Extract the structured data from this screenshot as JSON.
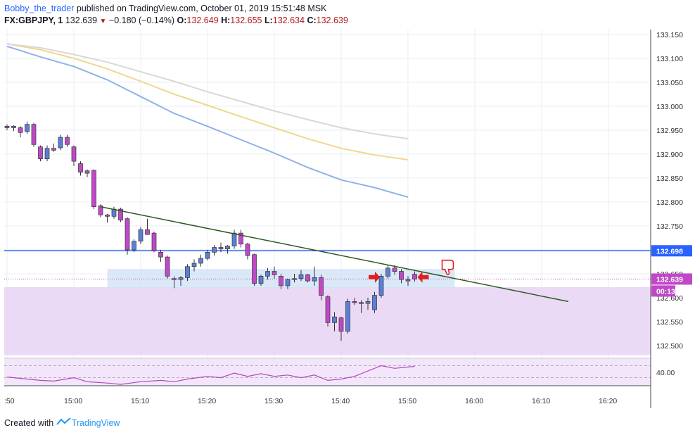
{
  "header": {
    "author": "Bobby_the_trader",
    "published": "published on TradingView.com, October 01, 2019 15:51:48 MSK",
    "symbol": "FX:GBPJPY, 1",
    "last": "132.639",
    "change": "−0.180 (−0.14%)",
    "o_label": "O:",
    "o": "132.649",
    "h_label": "H:",
    "h": "132.655",
    "l_label": "L:",
    "l": "132.634",
    "c_label": "C:",
    "c": "132.639"
  },
  "footer": {
    "created": "Created with",
    "brand": "TradingView"
  },
  "colors": {
    "up_candle": "#5b7fd6",
    "down_candle": "#c048c8",
    "ma_fast": "#8fb3e6",
    "ma_mid": "#f0d78c",
    "ma_slow": "#d8d8d8",
    "trendline": "#2e5a1f",
    "level_line": "#2962ff",
    "zone_fill": "#e8d4f5",
    "rsi": "#b04ab8",
    "marker_arrow": "#e02020"
  },
  "chart_data": {
    "type": "candlestick",
    "symbol": "FX:GBPJPY",
    "timeframe": "1",
    "x_ticks": [
      ":50",
      "15:00",
      "15:10",
      "15:20",
      "15:30",
      "15:40",
      "15:50",
      "16:00",
      "16:10",
      "16:20"
    ],
    "y_ticks": [
      "133.150",
      "133.100",
      "133.050",
      "133.000",
      "132.950",
      "132.900",
      "132.850",
      "132.800",
      "132.750",
      "132.700",
      "132.650",
      "132.600",
      "132.550",
      "132.500"
    ],
    "ylim": [
      132.475,
      133.16
    ],
    "price_tags": {
      "level": "132.698",
      "current": "132.639",
      "countdown": "00:13"
    },
    "horizontal_level": 132.698,
    "candles": [
      {
        "t": "14:50",
        "o": 132.958,
        "h": 132.962,
        "l": 132.95,
        "c": 132.955
      },
      {
        "t": "14:51",
        "o": 132.955,
        "h": 132.96,
        "l": 132.948,
        "c": 132.958
      },
      {
        "t": "14:52",
        "o": 132.955,
        "h": 132.958,
        "l": 132.935,
        "c": 132.945
      },
      {
        "t": "14:53",
        "o": 132.947,
        "h": 132.968,
        "l": 132.942,
        "c": 132.962
      },
      {
        "t": "14:54",
        "o": 132.962,
        "h": 132.965,
        "l": 132.915,
        "c": 132.92
      },
      {
        "t": "14:55",
        "o": 132.915,
        "h": 132.918,
        "l": 132.885,
        "c": 132.89
      },
      {
        "t": "14:56",
        "o": 132.89,
        "h": 132.918,
        "l": 132.885,
        "c": 132.912
      },
      {
        "t": "14:57",
        "o": 132.912,
        "h": 132.922,
        "l": 132.905,
        "c": 132.908
      },
      {
        "t": "14:58",
        "o": 132.913,
        "h": 132.94,
        "l": 132.908,
        "c": 132.935
      },
      {
        "t": "14:59",
        "o": 132.935,
        "h": 132.94,
        "l": 132.915,
        "c": 132.92
      },
      {
        "t": "15:00",
        "o": 132.915,
        "h": 132.918,
        "l": 132.875,
        "c": 132.885
      },
      {
        "t": "15:01",
        "o": 132.88,
        "h": 132.885,
        "l": 132.855,
        "c": 132.862
      },
      {
        "t": "15:02",
        "o": 132.865,
        "h": 132.868,
        "l": 132.852,
        "c": 132.86
      },
      {
        "t": "15:03",
        "o": 132.866,
        "h": 132.868,
        "l": 132.785,
        "c": 132.79
      },
      {
        "t": "15:04",
        "o": 132.792,
        "h": 132.795,
        "l": 132.768,
        "c": 132.773
      },
      {
        "t": "15:05",
        "o": 132.773,
        "h": 132.775,
        "l": 132.757,
        "c": 132.77
      },
      {
        "t": "15:06",
        "o": 132.77,
        "h": 132.79,
        "l": 132.765,
        "c": 132.785
      },
      {
        "t": "15:07",
        "o": 132.785,
        "h": 132.788,
        "l": 132.758,
        "c": 132.762
      },
      {
        "t": "15:08",
        "o": 132.765,
        "h": 132.768,
        "l": 132.69,
        "c": 132.7
      },
      {
        "t": "15:09",
        "o": 132.7,
        "h": 132.722,
        "l": 132.695,
        "c": 132.718
      },
      {
        "t": "15:10",
        "o": 132.718,
        "h": 132.748,
        "l": 132.712,
        "c": 132.742
      },
      {
        "t": "15:11",
        "o": 132.742,
        "h": 132.765,
        "l": 132.735,
        "c": 132.732
      },
      {
        "t": "15:12",
        "o": 132.735,
        "h": 132.738,
        "l": 132.695,
        "c": 132.698
      },
      {
        "t": "15:13",
        "o": 132.695,
        "h": 132.7,
        "l": 132.675,
        "c": 132.685
      },
      {
        "t": "15:14",
        "o": 132.685,
        "h": 132.688,
        "l": 132.64,
        "c": 132.645
      },
      {
        "t": "15:15",
        "o": 132.64,
        "h": 132.645,
        "l": 132.62,
        "c": 132.638
      },
      {
        "t": "15:16",
        "o": 132.638,
        "h": 132.645,
        "l": 132.625,
        "c": 132.642
      },
      {
        "t": "15:17",
        "o": 132.642,
        "h": 132.67,
        "l": 132.635,
        "c": 132.665
      },
      {
        "t": "15:18",
        "o": 132.665,
        "h": 132.68,
        "l": 132.655,
        "c": 132.672
      },
      {
        "t": "15:19",
        "o": 132.672,
        "h": 132.69,
        "l": 132.665,
        "c": 132.682
      },
      {
        "t": "15:20",
        "o": 132.682,
        "h": 132.7,
        "l": 132.678,
        "c": 132.695
      },
      {
        "t": "15:21",
        "o": 132.695,
        "h": 132.71,
        "l": 132.688,
        "c": 132.705
      },
      {
        "t": "15:22",
        "o": 132.705,
        "h": 132.715,
        "l": 132.695,
        "c": 132.702
      },
      {
        "t": "15:23",
        "o": 132.702,
        "h": 132.71,
        "l": 132.692,
        "c": 132.708
      },
      {
        "t": "15:24",
        "o": 132.708,
        "h": 132.742,
        "l": 132.702,
        "c": 132.735
      },
      {
        "t": "15:25",
        "o": 132.735,
        "h": 132.742,
        "l": 132.705,
        "c": 132.712
      },
      {
        "t": "15:26",
        "o": 132.712,
        "h": 132.715,
        "l": 132.68,
        "c": 132.688
      },
      {
        "t": "15:27",
        "o": 132.69,
        "h": 132.692,
        "l": 132.625,
        "c": 132.63
      },
      {
        "t": "15:28",
        "o": 132.63,
        "h": 132.648,
        "l": 132.625,
        "c": 132.645
      },
      {
        "t": "15:29",
        "o": 132.645,
        "h": 132.662,
        "l": 132.638,
        "c": 132.655
      },
      {
        "t": "15:30",
        "o": 132.655,
        "h": 132.665,
        "l": 132.64,
        "c": 132.648
      },
      {
        "t": "15:31",
        "o": 132.645,
        "h": 132.65,
        "l": 132.618,
        "c": 132.625
      },
      {
        "t": "15:32",
        "o": 132.625,
        "h": 132.64,
        "l": 132.618,
        "c": 132.638
      },
      {
        "t": "15:33",
        "o": 132.638,
        "h": 132.65,
        "l": 132.632,
        "c": 132.64
      },
      {
        "t": "15:34",
        "o": 132.64,
        "h": 132.658,
        "l": 132.635,
        "c": 132.648
      },
      {
        "t": "15:35",
        "o": 132.648,
        "h": 132.65,
        "l": 132.632,
        "c": 132.635
      },
      {
        "t": "15:36",
        "o": 132.635,
        "h": 132.665,
        "l": 132.625,
        "c": 132.642
      },
      {
        "t": "15:37",
        "o": 132.642,
        "h": 132.648,
        "l": 132.595,
        "c": 132.605
      },
      {
        "t": "15:38",
        "o": 132.602,
        "h": 132.605,
        "l": 132.54,
        "c": 132.548
      },
      {
        "t": "15:39",
        "o": 132.548,
        "h": 132.57,
        "l": 132.53,
        "c": 132.56
      },
      {
        "t": "15:40",
        "o": 132.558,
        "h": 132.56,
        "l": 132.51,
        "c": 132.53
      },
      {
        "t": "15:41",
        "o": 132.53,
        "h": 132.598,
        "l": 132.525,
        "c": 132.592
      },
      {
        "t": "15:42",
        "o": 132.592,
        "h": 132.6,
        "l": 132.585,
        "c": 132.59
      },
      {
        "t": "15:43",
        "o": 132.59,
        "h": 132.595,
        "l": 132.568,
        "c": 132.588
      },
      {
        "t": "15:44",
        "o": 132.588,
        "h": 132.6,
        "l": 132.575,
        "c": 132.592
      },
      {
        "t": "15:45",
        "o": 132.575,
        "h": 132.612,
        "l": 132.568,
        "c": 132.605
      },
      {
        "t": "15:46",
        "o": 132.605,
        "h": 132.65,
        "l": 132.6,
        "c": 132.645
      },
      {
        "t": "15:47",
        "o": 132.645,
        "h": 132.668,
        "l": 132.64,
        "c": 132.662
      },
      {
        "t": "15:48",
        "o": 132.662,
        "h": 132.668,
        "l": 132.648,
        "c": 132.655
      },
      {
        "t": "15:49",
        "o": 132.655,
        "h": 132.66,
        "l": 132.63,
        "c": 132.638
      },
      {
        "t": "15:50",
        "o": 132.638,
        "h": 132.645,
        "l": 132.625,
        "c": 132.635
      },
      {
        "t": "15:51",
        "o": 132.649,
        "h": 132.655,
        "l": 132.634,
        "c": 132.639
      }
    ],
    "moving_averages": [
      {
        "points": [
          [
            "14:50",
            133.125
          ],
          [
            "14:55",
            133.103
          ],
          [
            "15:00",
            133.083
          ],
          [
            "15:05",
            133.055
          ],
          [
            "15:10",
            133.02
          ],
          [
            "15:15",
            132.985
          ],
          [
            "15:20",
            132.958
          ],
          [
            "15:25",
            132.93
          ],
          [
            "15:30",
            132.902
          ],
          [
            "15:35",
            132.872
          ],
          [
            "15:40",
            132.846
          ],
          [
            "15:45",
            132.83
          ],
          [
            "15:50",
            132.81
          ]
        ]
      },
      {
        "points": [
          [
            "14:50",
            133.13
          ],
          [
            "14:55",
            133.118
          ],
          [
            "15:00",
            133.1
          ],
          [
            "15:05",
            133.078
          ],
          [
            "15:10",
            133.052
          ],
          [
            "15:15",
            133.025
          ],
          [
            "15:20",
            133.002
          ],
          [
            "15:25",
            132.978
          ],
          [
            "15:30",
            132.955
          ],
          [
            "15:35",
            132.932
          ],
          [
            "15:40",
            132.912
          ],
          [
            "15:45",
            132.898
          ],
          [
            "15:50",
            132.888
          ]
        ]
      },
      {
        "points": [
          [
            "14:50",
            133.13
          ],
          [
            "14:55",
            133.122
          ],
          [
            "15:00",
            133.108
          ],
          [
            "15:05",
            133.092
          ],
          [
            "15:10",
            133.072
          ],
          [
            "15:15",
            133.052
          ],
          [
            "15:20",
            133.03
          ],
          [
            "15:25",
            133.01
          ],
          [
            "15:30",
            132.99
          ],
          [
            "15:35",
            132.972
          ],
          [
            "15:40",
            132.955
          ],
          [
            "15:45",
            132.942
          ],
          [
            "15:50",
            132.932
          ]
        ]
      }
    ],
    "trendline": {
      "from": [
        "15:04",
        132.79
      ],
      "to": [
        "16:14",
        132.592
      ]
    },
    "consolidation_box": {
      "from": "15:05",
      "to": "15:57",
      "low": 132.62,
      "high": 132.66
    },
    "zone": {
      "low": 132.48,
      "high": 132.622
    },
    "rsi": {
      "ticks": [
        "40.00"
      ],
      "points": [
        [
          "14:50",
          36.5
        ],
        [
          "14:53",
          35
        ],
        [
          "14:55",
          34
        ],
        [
          "14:57",
          33.5
        ],
        [
          "15:00",
          36
        ],
        [
          "15:02",
          33
        ],
        [
          "15:05",
          32
        ],
        [
          "15:07",
          31
        ],
        [
          "15:10",
          33
        ],
        [
          "15:13",
          34
        ],
        [
          "15:15",
          33
        ],
        [
          "15:17",
          35
        ],
        [
          "15:20",
          37
        ],
        [
          "15:22",
          36
        ],
        [
          "15:24",
          39.5
        ],
        [
          "15:26",
          37
        ],
        [
          "15:28",
          39
        ],
        [
          "15:30",
          37
        ],
        [
          "15:32",
          38
        ],
        [
          "15:34",
          36
        ],
        [
          "15:36",
          38
        ],
        [
          "15:38",
          34
        ],
        [
          "15:40",
          35
        ],
        [
          "15:42",
          37
        ],
        [
          "15:44",
          41
        ],
        [
          "15:46",
          45
        ],
        [
          "15:48",
          43
        ],
        [
          "15:50",
          44
        ],
        [
          "15:51",
          44.5
        ]
      ]
    }
  }
}
